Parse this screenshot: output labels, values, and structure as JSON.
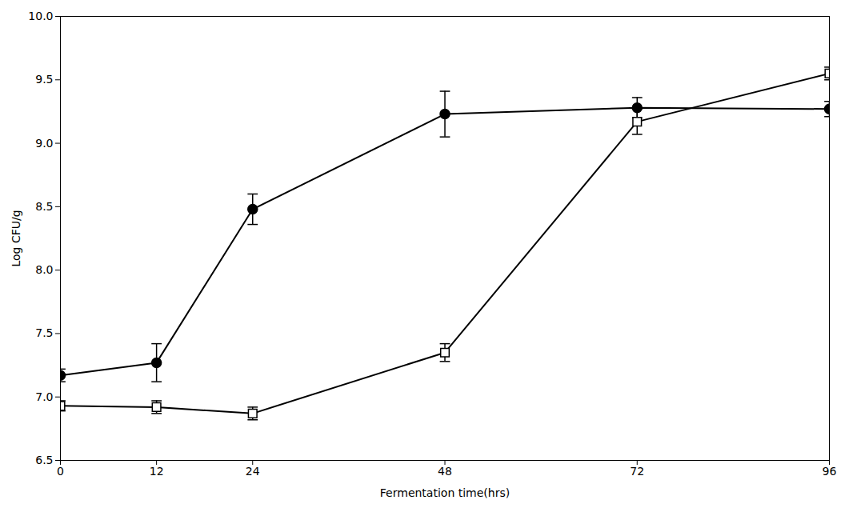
{
  "chart_data": {
    "type": "line",
    "xlabel": "Fermentation time(hrs)",
    "ylabel": "Log CFU/g",
    "x": [
      0,
      12,
      24,
      48,
      72,
      96
    ],
    "series": [
      {
        "color": "#000000",
        "marker": "circle",
        "line_style": "solid",
        "values": [
          7.17,
          7.27,
          8.48,
          9.23,
          9.28,
          9.27
        ],
        "yerr": [
          0.05,
          0.15,
          0.12,
          0.18,
          0.08,
          0.06
        ]
      },
      {
        "color": "#000000",
        "marker": "square",
        "line_style": "solid",
        "values": [
          6.93,
          6.92,
          6.87,
          7.35,
          9.17,
          9.55
        ],
        "yerr": [
          0.04,
          0.05,
          0.05,
          0.07,
          0.1,
          0.05
        ]
      }
    ],
    "xlim": [
      0,
      96
    ],
    "xticks": [
      0,
      12,
      24,
      48,
      72,
      96
    ],
    "ylim": [
      6.5,
      10.0
    ],
    "yticks": [
      6.5,
      {
        "value": 7.0,
        "label": "7.0"
      },
      7.5,
      {
        "value": 8.0,
        "label": "8.0"
      },
      8.5,
      {
        "value": 9.0,
        "label": "9.0"
      },
      9.5,
      {
        "value": 10.0,
        "label": "10.0"
      }
    ],
    "grid": false
  }
}
